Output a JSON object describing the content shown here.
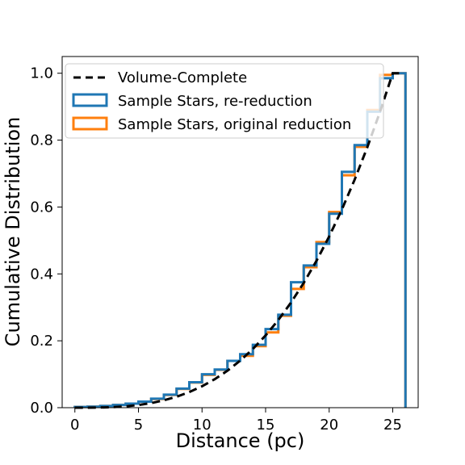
{
  "chart_data": {
    "type": "line",
    "xlabel": "Distance (pc)",
    "ylabel": "Cumulative Distribution",
    "xlim": [
      -1,
      27
    ],
    "ylim": [
      0,
      1.05
    ],
    "xticks": [
      0,
      5,
      10,
      15,
      20,
      25
    ],
    "yticks": [
      0.0,
      0.2,
      0.4,
      0.6,
      0.8,
      1.0
    ],
    "xtick_labels": [
      "0",
      "5",
      "10",
      "15",
      "20",
      "25"
    ],
    "ytick_labels": [
      "0.0",
      "0.2",
      "0.4",
      "0.6",
      "0.8",
      "1.0"
    ],
    "grid": false,
    "legend_position": "upper-left",
    "series": [
      {
        "name": "Volume-Complete",
        "style": "dashed",
        "color": "#000000",
        "x": [
          0,
          1,
          2,
          3,
          4,
          5,
          6,
          7,
          8,
          9,
          10,
          11,
          12,
          13,
          14,
          15,
          16,
          17,
          18,
          19,
          20,
          21,
          22,
          23,
          24,
          25,
          25.5
        ],
        "y": [
          0.0,
          0.0001,
          0.0005,
          0.0017,
          0.0041,
          0.008,
          0.0138,
          0.022,
          0.0328,
          0.0467,
          0.064,
          0.0852,
          0.1106,
          0.1406,
          0.1756,
          0.216,
          0.2621,
          0.3144,
          0.3732,
          0.4389,
          0.512,
          0.5927,
          0.6815,
          0.7787,
          0.8847,
          1.0,
          1.0
        ]
      },
      {
        "name": "Sample Stars, original reduction",
        "style": "step",
        "color": "#ff7f0e",
        "bin_edges": [
          0,
          1,
          2,
          3,
          4,
          5,
          6,
          7,
          8,
          9,
          10,
          11,
          12,
          13,
          14,
          15,
          16,
          17,
          18,
          19,
          20,
          21,
          22,
          23,
          24,
          25,
          26
        ],
        "values": [
          0.002,
          0.003,
          0.005,
          0.008,
          0.012,
          0.018,
          0.026,
          0.038,
          0.056,
          0.075,
          0.098,
          0.113,
          0.14,
          0.155,
          0.184,
          0.225,
          0.275,
          0.355,
          0.42,
          0.495,
          0.585,
          0.695,
          0.78,
          0.89,
          0.995,
          1.0
        ]
      },
      {
        "name": "Sample Stars, re-reduction",
        "style": "step",
        "color": "#1f77b4",
        "bin_edges": [
          0,
          1,
          2,
          3,
          4,
          5,
          6,
          7,
          8,
          9,
          10,
          11,
          12,
          13,
          14,
          15,
          16,
          17,
          18,
          19,
          20,
          21,
          22,
          23,
          24,
          25,
          26
        ],
        "values": [
          0.002,
          0.003,
          0.005,
          0.008,
          0.012,
          0.018,
          0.027,
          0.039,
          0.057,
          0.076,
          0.1,
          0.114,
          0.14,
          0.16,
          0.188,
          0.235,
          0.278,
          0.375,
          0.425,
          0.49,
          0.58,
          0.705,
          0.785,
          0.885,
          0.985,
          1.0
        ]
      }
    ],
    "legend": [
      {
        "label": "Volume-Complete",
        "style": "dashed",
        "color": "#000000"
      },
      {
        "label": "Sample Stars, re-reduction",
        "style": "step",
        "color": "#1f77b4"
      },
      {
        "label": "Sample Stars, original reduction",
        "style": "step",
        "color": "#ff7f0e"
      }
    ]
  }
}
